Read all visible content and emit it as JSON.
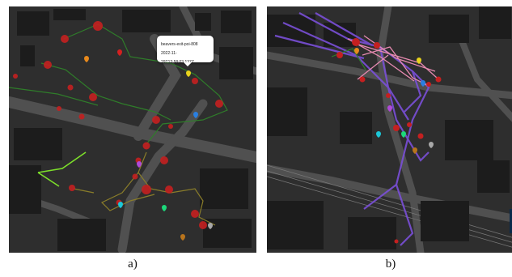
{
  "figure": {
    "panel_a": {
      "caption": "a)",
      "tooltip": {
        "title": "beavers-exit-poi-808",
        "timestamp": "2022-11-29T12:58:03.137Z"
      }
    },
    "panel_b": {
      "caption": "b)"
    }
  },
  "colors": {
    "map_background": "#2e2e2e",
    "building": "#1c1c1c",
    "road": "#505050",
    "poi_red": "#d42020",
    "trace_green": "#2f7d2a",
    "trace_olive": "#8a7d2a",
    "trace_lime": "#7de02a",
    "trace_purple": "#7a4fd8",
    "trace_pink": "#e68ab0",
    "marker_orange": "#e8891c",
    "marker_yellow": "#e8d21c",
    "marker_blue": "#2a7fe0",
    "marker_purple": "#b04ad8",
    "marker_cyan": "#1cc7d8",
    "marker_green": "#1cd87a",
    "marker_gray": "#a8a8a8",
    "marker_brown": "#b8741c"
  },
  "icons": [
    "map-pin-icon",
    "apple-poi-icon"
  ]
}
